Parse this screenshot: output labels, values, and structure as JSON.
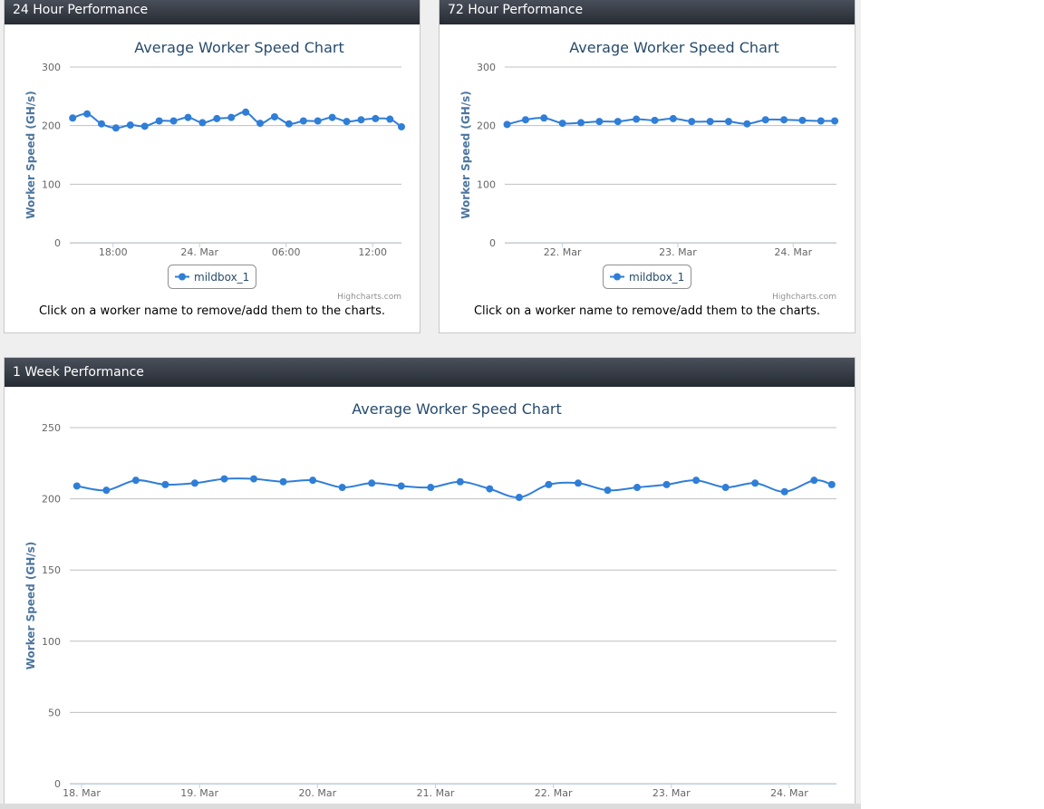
{
  "panels": {
    "p24": {
      "header": "24 Hour Performance",
      "footnote": "Click on a worker name to remove/add them to the charts."
    },
    "p72": {
      "header": "72 Hour Performance",
      "footnote": "Click on a worker name to remove/add them to the charts."
    },
    "pwk": {
      "header": "1 Week Performance"
    }
  },
  "colors": {
    "series": "#2f7ed8",
    "title": "#274b6d",
    "axis_label": "#4d759e",
    "grid": "#c0c0c0"
  },
  "chart_data": [
    {
      "type": "line",
      "title": "Average Worker Speed Chart",
      "ylabel": "Worker Speed (GH/s)",
      "xlabel": "",
      "ylim": [
        0,
        300
      ],
      "yticks": [
        0,
        100,
        200,
        300
      ],
      "x_ticks": [
        {
          "label": "18:00",
          "t": 3.0
        },
        {
          "label": "24. Mar",
          "t": 9.0
        },
        {
          "label": "06:00",
          "t": 15.0
        },
        {
          "label": "12:00",
          "t": 21.0
        }
      ],
      "x_range": [
        0,
        23
      ],
      "legend": [
        "mildbox_1"
      ],
      "legend_position": "bottom-center",
      "credit": "Highcharts.com",
      "series": [
        {
          "name": "mildbox_1",
          "x": [
            0.2,
            1.2,
            2.2,
            3.2,
            4.2,
            5.2,
            6.2,
            7.2,
            8.2,
            9.2,
            10.2,
            11.2,
            12.2,
            13.2,
            14.2,
            15.2,
            16.2,
            17.2,
            18.2,
            19.2,
            20.2,
            21.2,
            22.2,
            23.0
          ],
          "values": [
            213,
            220,
            203,
            196,
            201,
            199,
            208,
            208,
            214,
            205,
            212,
            214,
            223,
            204,
            215,
            203,
            208,
            208,
            214,
            207,
            210,
            212,
            211,
            198
          ]
        }
      ]
    },
    {
      "type": "line",
      "title": "Average Worker Speed Chart",
      "ylabel": "Worker Speed (GH/s)",
      "xlabel": "",
      "ylim": [
        0,
        300
      ],
      "yticks": [
        0,
        100,
        200,
        300
      ],
      "x_ticks": [
        {
          "label": "22. Mar",
          "t": 0.5
        },
        {
          "label": "23. Mar",
          "t": 1.5
        },
        {
          "label": "24. Mar",
          "t": 2.5
        }
      ],
      "x_range": [
        0,
        2.875
      ],
      "legend": [
        "mildbox_1"
      ],
      "legend_position": "bottom-center",
      "credit": "Highcharts.com",
      "series": [
        {
          "name": "mildbox_1",
          "x": [
            0.02,
            0.18,
            0.34,
            0.5,
            0.66,
            0.82,
            0.98,
            1.14,
            1.3,
            1.46,
            1.62,
            1.78,
            1.94,
            2.1,
            2.26,
            2.42,
            2.58,
            2.74,
            2.86
          ],
          "values": [
            202,
            210,
            213,
            204,
            205,
            207,
            207,
            211,
            209,
            212,
            207,
            207,
            207,
            203,
            210,
            210,
            209,
            208,
            208
          ]
        }
      ]
    },
    {
      "type": "line",
      "title": "Average Worker Speed Chart",
      "ylabel": "Worker Speed (GH/s)",
      "xlabel": "",
      "ylim": [
        0,
        250
      ],
      "yticks": [
        0,
        50,
        100,
        150,
        200,
        250
      ],
      "x_ticks": [
        {
          "label": "18. Mar",
          "t": 0.1
        },
        {
          "label": "19. Mar",
          "t": 1.1
        },
        {
          "label": "20. Mar",
          "t": 2.1
        },
        {
          "label": "21. Mar",
          "t": 3.1
        },
        {
          "label": "22. Mar",
          "t": 4.1
        },
        {
          "label": "23. Mar",
          "t": 5.1
        },
        {
          "label": "24. Mar",
          "t": 6.1
        }
      ],
      "x_range": [
        0,
        6.5
      ],
      "legend": [],
      "credit": "",
      "series": [
        {
          "name": "mildbox_1",
          "x": [
            0.06,
            0.31,
            0.56,
            0.81,
            1.06,
            1.31,
            1.56,
            1.81,
            2.06,
            2.31,
            2.56,
            2.81,
            3.06,
            3.31,
            3.56,
            3.81,
            4.06,
            4.31,
            4.56,
            4.81,
            5.06,
            5.31,
            5.56,
            5.81,
            6.06,
            6.31,
            6.46
          ],
          "values": [
            209,
            206,
            213,
            210,
            211,
            214,
            214,
            212,
            213,
            208,
            211,
            209,
            208,
            212,
            207,
            201,
            210,
            211,
            206,
            208,
            210,
            213,
            208,
            211,
            205,
            213,
            210
          ]
        }
      ]
    }
  ]
}
